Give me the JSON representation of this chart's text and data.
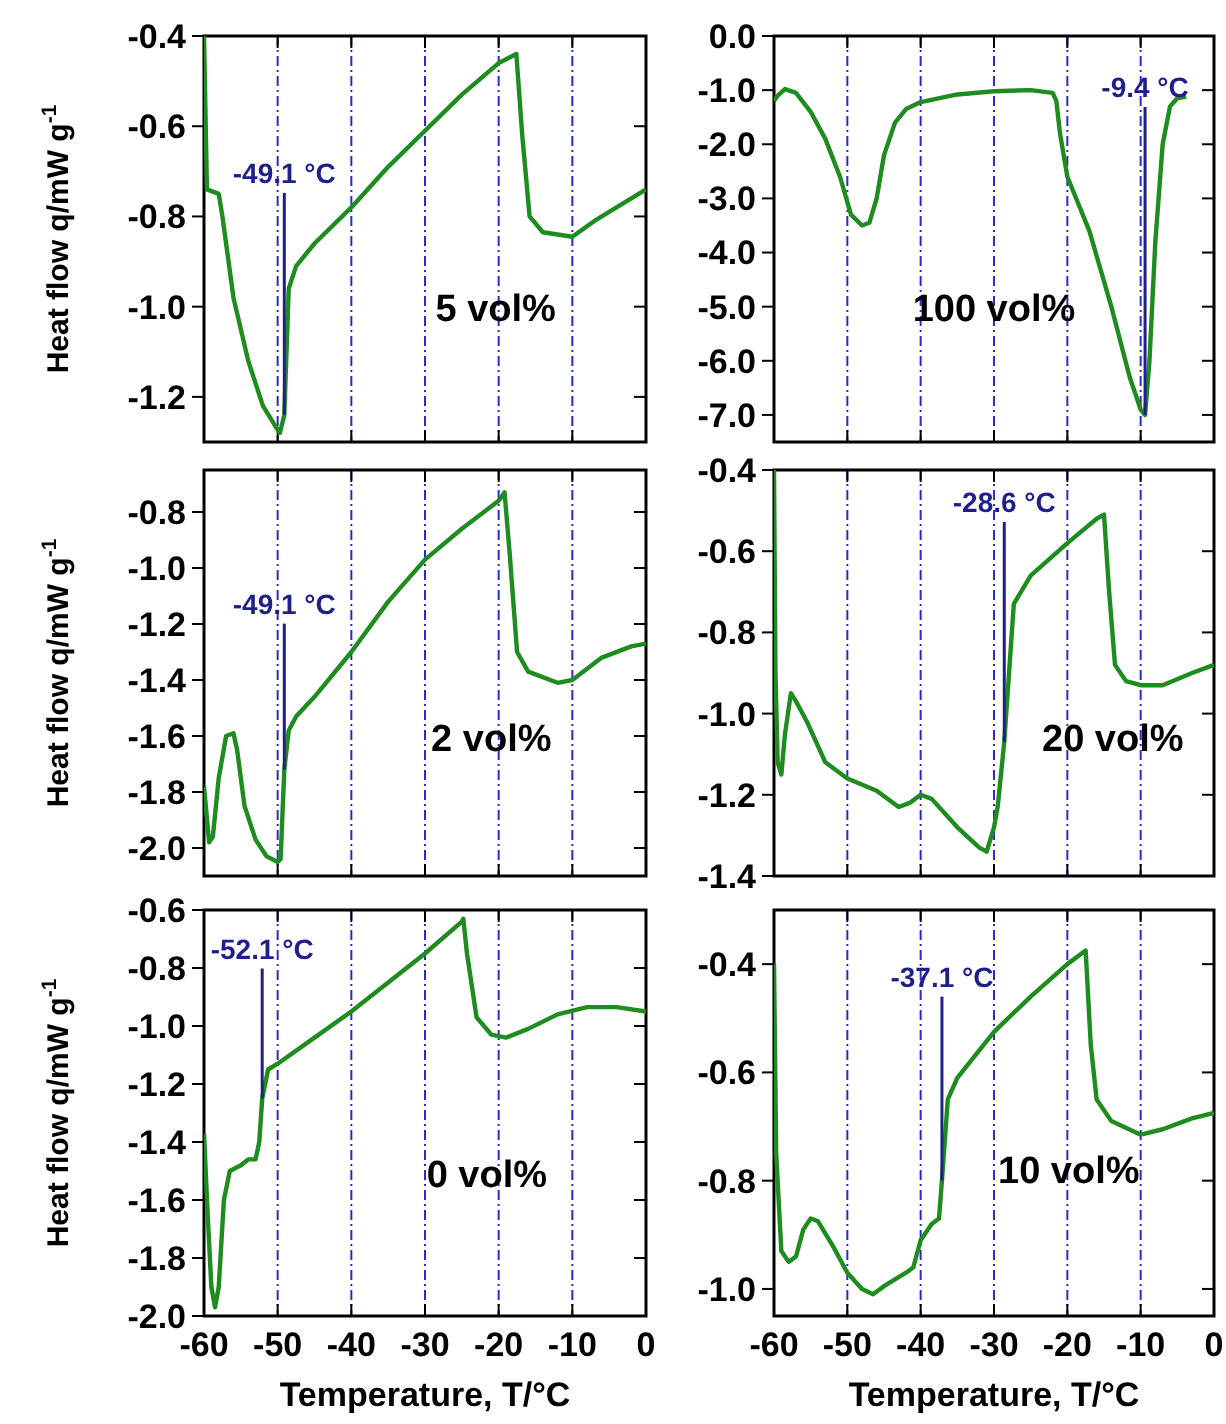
{
  "chart_data": [
    {
      "type": "line",
      "title": "5 vol%",
      "ylabel": "Heat flow q/mW g$^{-1}$",
      "xlim": [
        -60,
        0
      ],
      "xticks": [
        -60,
        -50,
        -40,
        -30,
        -20,
        -10,
        0
      ],
      "ylim": [
        -1.3,
        -0.4
      ],
      "yticks": [
        -0.4,
        -0.6,
        -0.8,
        {
          "value": -1.0,
          "label": "-1.0"
        },
        -1.2
      ],
      "grid": "x",
      "tick_labels": "y",
      "line_style": "solid",
      "marker": "none",
      "annotations": [
        {
          "text": "-49.1 °C",
          "x": -49.1,
          "y": -1.24
        }
      ],
      "series": [
        {
          "color": "#1e8c1e",
          "x": [
            -60,
            -59.6,
            -58,
            -57.5,
            -56,
            -54,
            -52,
            -50.5,
            -49.7,
            -49.1,
            -48.5,
            -47.5,
            -45,
            -40,
            -35,
            -30,
            -25,
            -20,
            -17.6,
            -16.8,
            -15.8,
            -14,
            -10,
            -7,
            -3,
            0
          ],
          "values": [
            -0.4,
            -0.74,
            -0.75,
            -0.8,
            -0.98,
            -1.12,
            -1.22,
            -1.26,
            -1.28,
            -1.24,
            -0.96,
            -0.91,
            -0.86,
            -0.78,
            -0.69,
            -0.61,
            -0.53,
            -0.46,
            -0.44,
            -0.62,
            -0.8,
            -0.835,
            -0.845,
            -0.81,
            -0.77,
            -0.74
          ]
        }
      ]
    },
    {
      "type": "line",
      "title": "100 vol%",
      "xlim": [
        -60,
        0
      ],
      "xticks": [
        -60,
        -50,
        -40,
        -30,
        -20,
        -10,
        0
      ],
      "ylim": [
        -7.5,
        0
      ],
      "yticks": [
        {
          "value": 0,
          "label": "0.0"
        },
        {
          "value": -1,
          "label": "-1.0"
        },
        {
          "value": -2,
          "label": "-2.0"
        },
        {
          "value": -3,
          "label": "-3.0"
        },
        {
          "value": -4,
          "label": "-4.0"
        },
        {
          "value": -5,
          "label": "-5.0"
        },
        {
          "value": -6,
          "label": "-6.0"
        },
        {
          "value": -7,
          "label": "-7.0"
        }
      ],
      "grid": "x",
      "tick_labels": "y",
      "line_style": "solid",
      "marker": "none",
      "annotations": [
        {
          "text": "-9.4 °C",
          "x": -9.4,
          "y": -7.0
        }
      ],
      "series": [
        {
          "color": "#1e8c1e",
          "x": [
            -60,
            -59.5,
            -58.5,
            -57,
            -55,
            -53,
            -51,
            -49.5,
            -48,
            -47,
            -46,
            -45,
            -43.5,
            -42,
            -40,
            -35,
            -30,
            -25,
            -22,
            -21.5,
            -21,
            -20,
            -17,
            -14,
            -11.5,
            -10,
            -9.4,
            -8.8,
            -8,
            -7,
            -6,
            -5,
            -3.8
          ],
          "values": [
            -1.2,
            -1.1,
            -0.98,
            -1.05,
            -1.4,
            -1.9,
            -2.6,
            -3.3,
            -3.5,
            -3.45,
            -3.0,
            -2.2,
            -1.6,
            -1.35,
            -1.22,
            -1.08,
            -1.02,
            -1.0,
            -1.05,
            -1.2,
            -1.8,
            -2.6,
            -3.6,
            -5.0,
            -6.3,
            -6.9,
            -7.0,
            -6.0,
            -3.8,
            -2.0,
            -1.3,
            -1.15,
            -1.12
          ]
        }
      ]
    },
    {
      "type": "line",
      "title": "2 vol%",
      "ylabel": "Heat flow q/mW g$^{-1}$",
      "xlim": [
        -60,
        0
      ],
      "xticks": [
        -60,
        -50,
        -40,
        -30,
        -20,
        -10,
        0
      ],
      "ylim": [
        -2.1,
        -0.65
      ],
      "yticks": [
        -0.8,
        {
          "value": -1.0,
          "label": "-1.0"
        },
        -1.2,
        -1.4,
        -1.6,
        -1.8,
        {
          "value": -2.0,
          "label": "-2.0"
        }
      ],
      "grid": "x",
      "tick_labels": "y",
      "line_style": "solid",
      "marker": "none",
      "annotations": [
        {
          "text": "-49.1 °C",
          "x": -49.1,
          "y": -1.72
        }
      ],
      "series": [
        {
          "color": "#1e8c1e",
          "x": [
            -60,
            -59.3,
            -58.8,
            -58,
            -57,
            -56,
            -55.5,
            -54.5,
            -53,
            -51.5,
            -50,
            -49.6,
            -49.1,
            -48.5,
            -47.5,
            -45,
            -40,
            -35,
            -30,
            -25,
            -20,
            -19.2,
            -18.5,
            -17.5,
            -16,
            -12,
            -10,
            -6,
            -2,
            0
          ],
          "values": [
            -1.78,
            -1.98,
            -1.96,
            -1.75,
            -1.6,
            -1.59,
            -1.65,
            -1.85,
            -1.97,
            -2.03,
            -2.05,
            -2.04,
            -1.72,
            -1.58,
            -1.53,
            -1.46,
            -1.3,
            -1.12,
            -0.97,
            -0.86,
            -0.76,
            -0.73,
            -0.95,
            -1.3,
            -1.37,
            -1.41,
            -1.4,
            -1.32,
            -1.28,
            -1.27
          ]
        }
      ]
    },
    {
      "type": "line",
      "title": "20 vol%",
      "xlim": [
        -60,
        0
      ],
      "xticks": [
        -60,
        -50,
        -40,
        -30,
        -20,
        -10,
        0
      ],
      "ylim": [
        -1.4,
        -0.4
      ],
      "yticks": [
        -0.4,
        -0.6,
        -0.8,
        {
          "value": -1.0,
          "label": "-1.0"
        },
        -1.2,
        -1.4
      ],
      "grid": "x",
      "tick_labels": "y",
      "line_style": "solid",
      "marker": "none",
      "annotations": [
        {
          "text": "-28.6 °C",
          "x": -28.6,
          "y": -1.07
        }
      ],
      "series": [
        {
          "color": "#1e8c1e",
          "x": [
            -60,
            -59.8,
            -59.5,
            -59,
            -58.5,
            -57.7,
            -57,
            -55.5,
            -53,
            -50,
            -46,
            -43,
            -41.5,
            -40,
            -38.5,
            -35,
            -32,
            -31,
            -30,
            -29.5,
            -28.6,
            -27.3,
            -25,
            -20,
            -16,
            -15,
            -14.3,
            -13.5,
            -12,
            -10,
            -7,
            -3,
            0
          ],
          "values": [
            -0.4,
            -0.9,
            -1.12,
            -1.15,
            -1.05,
            -0.95,
            -0.97,
            -1.02,
            -1.12,
            -1.16,
            -1.19,
            -1.23,
            -1.22,
            -1.2,
            -1.21,
            -1.28,
            -1.33,
            -1.34,
            -1.28,
            -1.23,
            -1.07,
            -0.73,
            -0.66,
            -0.58,
            -0.52,
            -0.51,
            -0.7,
            -0.88,
            -0.92,
            -0.93,
            -0.93,
            -0.9,
            -0.88
          ]
        }
      ]
    },
    {
      "type": "line",
      "title": "0 vol%",
      "ylabel": "Heat flow q/mW g$^{-1}$",
      "xlabel": "Temperature, T/°C",
      "xlim": [
        -60,
        0
      ],
      "xticks": [
        -60,
        -50,
        -40,
        -30,
        -20,
        -10,
        0
      ],
      "ylim": [
        -2.0,
        -0.6
      ],
      "yticks": [
        -0.6,
        -0.8,
        {
          "value": -1.0,
          "label": "-1.0"
        },
        -1.2,
        -1.4,
        -1.6,
        -1.8,
        {
          "value": -2.0,
          "label": "-2.0"
        }
      ],
      "grid": "x",
      "line_style": "solid",
      "marker": "none",
      "annotations": [
        {
          "text": "-52.1 °C",
          "x": -52.1,
          "y": -1.25
        }
      ],
      "series": [
        {
          "color": "#1e8c1e",
          "x": [
            -60,
            -59.5,
            -59,
            -58.5,
            -58,
            -57.3,
            -56.5,
            -55,
            -54,
            -53,
            -52.5,
            -52.1,
            -51.3,
            -50,
            -45,
            -40,
            -35,
            -30,
            -25,
            -24.8,
            -24.3,
            -23,
            -21,
            -19,
            -16,
            -12,
            -8,
            -4,
            0
          ],
          "values": [
            -1.37,
            -1.65,
            -1.9,
            -1.97,
            -1.9,
            -1.6,
            -1.5,
            -1.48,
            -1.46,
            -1.46,
            -1.4,
            -1.25,
            -1.15,
            -1.13,
            -1.04,
            -0.95,
            -0.85,
            -0.75,
            -0.64,
            -0.63,
            -0.75,
            -0.97,
            -1.03,
            -1.04,
            -1.01,
            -0.96,
            -0.935,
            -0.935,
            -0.95
          ]
        }
      ]
    },
    {
      "type": "line",
      "title": "10 vol%",
      "xlabel": "Temperature, T/°C",
      "xlim": [
        -60,
        0
      ],
      "xticks": [
        -60,
        -50,
        -40,
        -30,
        -20,
        -10,
        0
      ],
      "ylim": [
        -1.05,
        -0.3
      ],
      "yticks": [
        -0.4,
        -0.6,
        -0.8,
        {
          "value": -1.0,
          "label": "-1.0"
        }
      ],
      "grid": "x",
      "line_style": "solid",
      "marker": "none",
      "annotations": [
        {
          "text": "-37.1 °C",
          "x": -37.1,
          "y": -0.8
        }
      ],
      "series": [
        {
          "color": "#1e8c1e",
          "x": [
            -60,
            -59.7,
            -59,
            -58,
            -57,
            -56,
            -55,
            -54,
            -52,
            -50,
            -48,
            -46.5,
            -45,
            -42,
            -41,
            -40,
            -38.5,
            -37.5,
            -37.1,
            -36.3,
            -35,
            -30,
            -25,
            -20,
            -17.5,
            -16.8,
            -16,
            -14,
            -10,
            -7,
            -3,
            0
          ],
          "values": [
            -0.4,
            -0.75,
            -0.93,
            -0.95,
            -0.94,
            -0.89,
            -0.87,
            -0.875,
            -0.92,
            -0.97,
            -1.0,
            -1.01,
            -0.995,
            -0.97,
            -0.96,
            -0.91,
            -0.88,
            -0.87,
            -0.8,
            -0.65,
            -0.61,
            -0.525,
            -0.46,
            -0.4,
            -0.375,
            -0.55,
            -0.65,
            -0.69,
            -0.715,
            -0.705,
            -0.685,
            -0.675
          ]
        }
      ]
    }
  ]
}
